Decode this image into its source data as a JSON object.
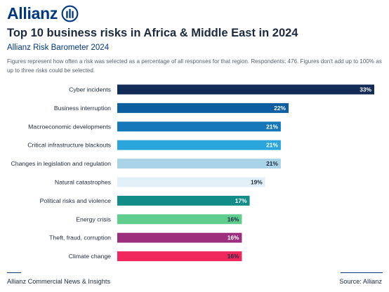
{
  "brand": {
    "name": "Allianz",
    "logo_icon": "allianz-eagle-circle-icon",
    "color": "#003781"
  },
  "header": {
    "title": "Top 10 business risks in Africa & Middle East in 2024",
    "subtitle": "Allianz Risk Barometer 2024",
    "note": "Figures represent how often a risk was selected as a percentage of all responses for that region. Respondents: 476. Figures don't add up to 100% as up to three risks could be selected."
  },
  "chart_data": {
    "type": "bar",
    "orientation": "horizontal",
    "title": "Top 10 business risks in Africa & Middle East in 2024",
    "categories": [
      "Cyber incidents",
      "Business interruption",
      "Macroeconomic developments",
      "Critical infrastructure blackouts",
      "Changes in legislation and regulation",
      "Natural catastrophes",
      "Political risks and violence",
      "Energy crisis",
      "Theft, fraud, corruption",
      "Climate change"
    ],
    "values": [
      33,
      22,
      21,
      21,
      21,
      19,
      17,
      16,
      16,
      16
    ],
    "data_labels": [
      "33%",
      "22%",
      "21%",
      "21%",
      "21%",
      "19%",
      "17%",
      "16%",
      "16%",
      "16%"
    ],
    "colors": [
      "#122b57",
      "#0c5ea0",
      "#1478ba",
      "#2aa6dd",
      "#a9d3e6",
      "#e2f0f7",
      "#128c89",
      "#5ecd8e",
      "#9d2d7d",
      "#f0275c"
    ],
    "label_colors": [
      "#ffffff",
      "#ffffff",
      "#ffffff",
      "#ffffff",
      "#1b2a3f",
      "#1b2a3f",
      "#ffffff",
      "#1b2a3f",
      "#ffffff",
      "#1b2a3f"
    ],
    "xlim": [
      0,
      33
    ],
    "grid": false,
    "legend": "none",
    "xlabel": "",
    "ylabel": ""
  },
  "footer": {
    "left": "Allianz Commercial News & Insights",
    "right": "Source: Allianz"
  }
}
